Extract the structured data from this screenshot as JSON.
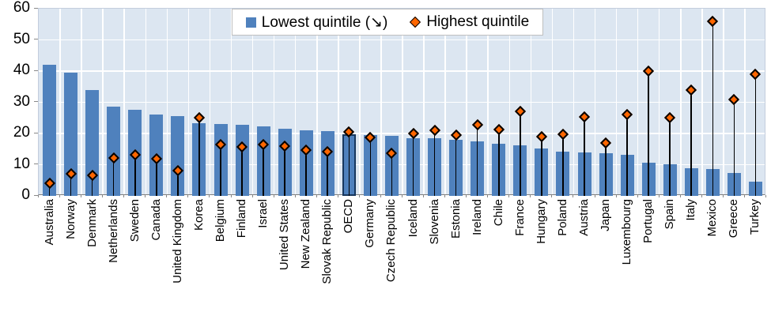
{
  "chart_data": {
    "type": "bar",
    "title": "",
    "categories": [
      "Australia",
      "Norway",
      "Denmark",
      "Netherlands",
      "Sweden",
      "Canada",
      "United Kingdom",
      "Korea",
      "Belgium",
      "Finland",
      "Israel",
      "United States",
      "New Zealand",
      "Slovak Republic",
      "OECD",
      "Germany",
      "Czech Republic",
      "Iceland",
      "Slovenia",
      "Estonia",
      "Ireland",
      "Chile",
      "France",
      "Hungary",
      "Poland",
      "Austria",
      "Japan",
      "Luxembourg",
      "Portugal",
      "Spain",
      "Italy",
      "Mexico",
      "Greece",
      "Turkey"
    ],
    "series": [
      {
        "name": "Lowest quintile (↘)",
        "render": "bar",
        "values": [
          42,
          39.5,
          34,
          28.5,
          27.5,
          26,
          25.5,
          23.2,
          23,
          22.7,
          22.4,
          21.4,
          21,
          20.8,
          19.8,
          19.5,
          19.3,
          18.5,
          18.4,
          17.9,
          17.5,
          16.8,
          16.2,
          15.2,
          14.3,
          14,
          13.6,
          13.1,
          10.7,
          10.2,
          8.8,
          8.5,
          7.4,
          4.5
        ]
      },
      {
        "name": "Highest quintile",
        "render": "diamond-marker-with-dropline",
        "values": [
          4,
          7,
          6.6,
          12.2,
          13.2,
          11.8,
          8,
          25,
          16.4,
          15.8,
          16.4,
          16,
          14.8,
          14.2,
          20.4,
          18.8,
          13.7,
          20.1,
          20.9,
          19.4,
          22.8,
          21.2,
          27,
          19,
          19.8,
          25.3,
          17,
          26,
          40,
          25,
          34,
          56,
          31,
          39
        ]
      }
    ],
    "ylim": [
      0,
      60
    ],
    "y_ticks": [
      0,
      10,
      20,
      30,
      40,
      50,
      60
    ],
    "grid": true,
    "legend_position": "top-center",
    "highlighted_category": "OECD"
  },
  "legend": {
    "items": [
      {
        "label": "Lowest quintile (↘)",
        "marker": "square"
      },
      {
        "label": "Highest quintile",
        "marker": "diamond"
      }
    ]
  },
  "colors": {
    "bar": "#4F81BD",
    "highlight_border": "#17375E",
    "marker": "#FF6600",
    "marker_outline": "#000000",
    "stem": "#000000",
    "plot_bg": "#DCE6F1",
    "gridline": "#FFFFFF",
    "axis_text": "#000000"
  }
}
